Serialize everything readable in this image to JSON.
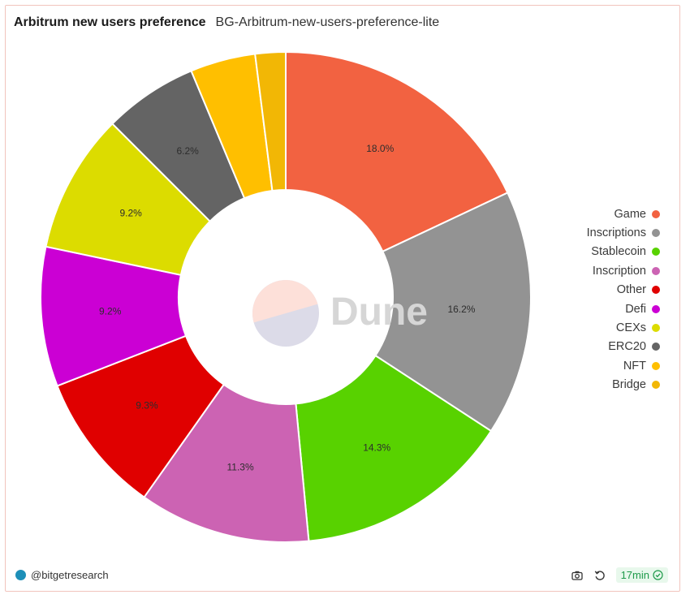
{
  "header": {
    "title": "Arbitrum new users preference",
    "subtitle": "BG-Arbitrum-new-users-preference-lite"
  },
  "watermark": {
    "text": "Dune"
  },
  "chart_data": {
    "type": "pie",
    "title": "Arbitrum new users preference",
    "donut": true,
    "legend_position": "right",
    "categories": [
      "Game",
      "Inscriptions",
      "Stablecoin",
      "Inscription",
      "Other",
      "Defi",
      "CEXs",
      "ERC20",
      "NFT",
      "Bridge"
    ],
    "values": [
      18.0,
      16.2,
      14.3,
      11.3,
      9.3,
      9.2,
      9.2,
      6.2,
      4.3,
      2.0
    ],
    "labels": [
      "18.0%",
      "16.2%",
      "14.3%",
      "11.3%",
      "9.3%",
      "9.2%",
      "9.2%",
      "6.2%",
      "",
      ""
    ],
    "colors": [
      "#f26241",
      "#939393",
      "#58d200",
      "#cc63b3",
      "#e00000",
      "#cb00d4",
      "#dcdc00",
      "#646464",
      "#ffbf00",
      "#f2b705"
    ]
  },
  "footer": {
    "handle": "@bitgetresearch",
    "refresh_time": "17min"
  }
}
